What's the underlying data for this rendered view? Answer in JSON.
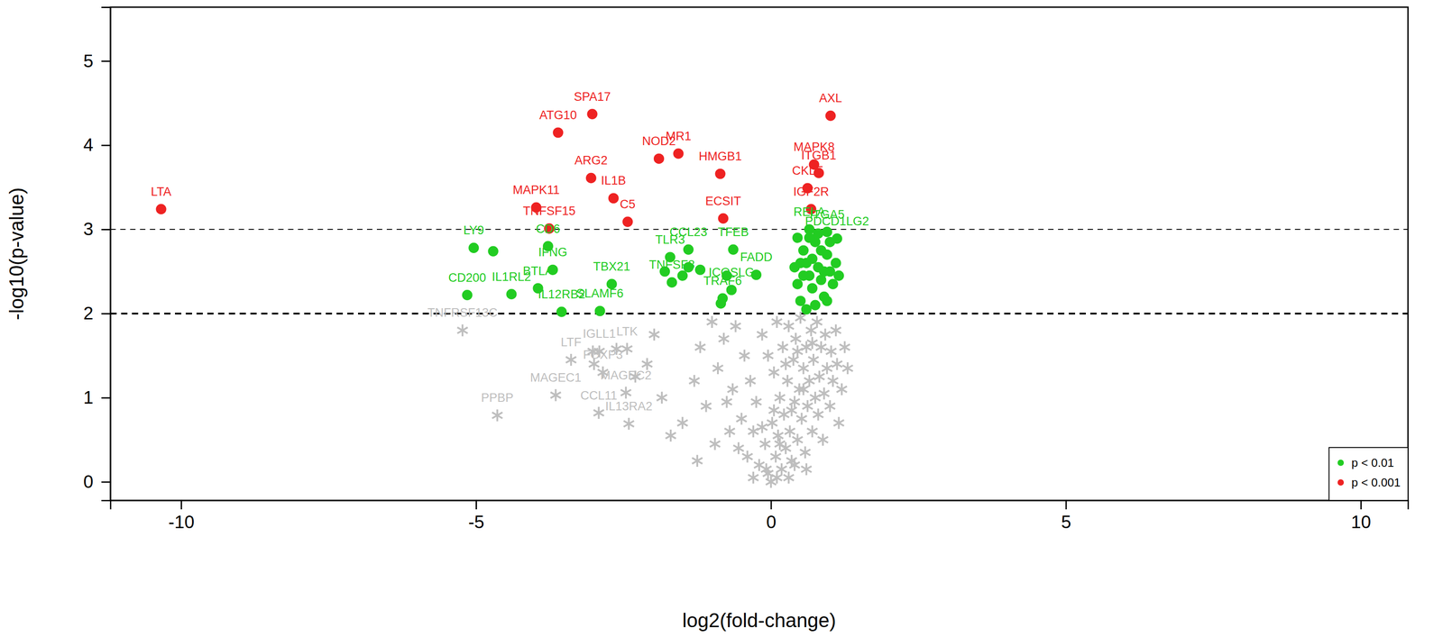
{
  "chart_data": {
    "type": "scatter",
    "x_label": "log2(fold-change)",
    "y_label": "-log10(p-value)",
    "xlim": [
      -11.2,
      10.8
    ],
    "ylim": [
      -0.22,
      5.64
    ],
    "xticks": [
      -10,
      -5,
      0,
      5,
      10
    ],
    "yticks": [
      0,
      1,
      2,
      3,
      4,
      5
    ],
    "reference_lines": [
      3,
      2
    ],
    "legend": "bottom-right",
    "series": [
      {
        "name": "p < 0.001",
        "color": "#ee2222",
        "marker": "circle",
        "x": [
          -10.34,
          -3.61,
          -3.03,
          -3.05,
          -2.67,
          -2.43,
          -3.98,
          -3.76,
          -1.9,
          -1.57,
          -0.86,
          -0.81,
          1.01,
          0.73,
          0.81,
          0.62,
          0.68
        ],
        "y": [
          3.24,
          4.15,
          4.37,
          3.61,
          3.37,
          3.09,
          3.26,
          3.01,
          3.84,
          3.9,
          3.66,
          3.13,
          4.35,
          3.77,
          3.67,
          3.49,
          3.24
        ],
        "labels": [
          "LTA",
          "ATG10",
          "SPA17",
          "ARG2",
          "IL1B",
          "C5",
          "MAPK11",
          "TNFSF15",
          "NOD2",
          "MR1",
          "HMGB1",
          "ECSIT",
          "AXL",
          "MAPK8",
          "ITGB1",
          "CKLF",
          "IGF2R"
        ]
      },
      {
        "name": "p < 0.01",
        "color": "#22cc22",
        "marker": "circle",
        "x": [
          -5.04,
          -3.78,
          -3.7,
          -3.95,
          -5.15,
          -4.4,
          -3.55,
          -2.7,
          -2.9,
          -1.71,
          -1.4,
          -0.64,
          -0.25,
          -1.68,
          -0.67,
          -0.82,
          0.65,
          1.12,
          0.95,
          0.45,
          0.55,
          0.6,
          0.65,
          0.7,
          0.75,
          0.8,
          0.85,
          0.9,
          0.95,
          1.0,
          1.05,
          0.5,
          0.55,
          0.6,
          0.7,
          0.75,
          0.8,
          0.85,
          0.9,
          1.0,
          1.1,
          0.45,
          0.65,
          1.15,
          0.95,
          0.4,
          0.5,
          -1.5,
          -1.8,
          -0.75,
          -0.85,
          -1.4,
          -1.2,
          -4.71
        ],
        "y": [
          2.78,
          2.8,
          2.52,
          2.3,
          2.22,
          2.23,
          2.02,
          2.35,
          2.03,
          2.67,
          2.76,
          2.76,
          2.46,
          2.37,
          2.28,
          2.18,
          3.0,
          2.89,
          2.97,
          2.9,
          2.75,
          2.6,
          2.45,
          2.3,
          2.85,
          2.55,
          2.4,
          2.2,
          2.7,
          2.5,
          2.35,
          2.15,
          2.45,
          2.05,
          2.65,
          2.1,
          2.95,
          2.75,
          2.5,
          2.85,
          2.6,
          2.35,
          2.9,
          2.45,
          2.15,
          2.55,
          2.6,
          2.45,
          2.5,
          2.45,
          2.12,
          2.55,
          2.52,
          2.74
        ],
        "labels": [
          "LY9",
          "CD6",
          "IFNG",
          "BTLA",
          "CD200",
          "IL1RL2",
          "IL12RB2",
          "TBX21",
          "SLAMF6",
          "TLR3",
          "CCL23",
          "TFEB",
          "FADD",
          "TNFSF8",
          "ICOSLG",
          "TRAF6",
          "RELA",
          "PDCD1LG2",
          "ITGA5",
          null,
          null,
          null,
          null,
          null,
          null,
          null,
          null,
          null,
          null,
          null,
          null,
          null,
          null,
          null,
          null,
          null,
          null,
          null,
          null,
          null,
          null,
          null,
          null,
          null,
          null,
          null,
          null,
          null,
          null,
          null,
          null,
          null,
          null,
          null
        ]
      },
      {
        "color": "#bebebe",
        "marker": "asterisk",
        "x": [
          -5.23,
          -4.64,
          -3.65,
          -3.39,
          -2.85,
          -2.91,
          -2.44,
          -2.46,
          -2.92,
          -2.41,
          -3.02,
          -3.0,
          -2.62,
          -2.3,
          -2.1,
          -1.98,
          -1.85,
          -1.7,
          -1.5,
          -1.3,
          -1.25,
          -1.2,
          -1.1,
          -1.0,
          -0.95,
          -0.9,
          -0.8,
          -0.75,
          -0.7,
          -0.65,
          -0.6,
          -0.55,
          -0.5,
          -0.45,
          -0.4,
          -0.35,
          -0.3,
          -0.25,
          -0.2,
          -0.15,
          -0.1,
          -0.05,
          0.0,
          0.02,
          0.05,
          0.08,
          0.1,
          0.12,
          0.15,
          0.18,
          0.2,
          0.22,
          0.25,
          0.28,
          0.3,
          0.32,
          0.35,
          0.38,
          0.4,
          0.42,
          0.45,
          0.48,
          0.5,
          0.52,
          0.55,
          0.58,
          0.6,
          0.62,
          0.65,
          0.68,
          0.7,
          0.72,
          0.75,
          0.78,
          0.8,
          0.82,
          0.85,
          0.88,
          0.9,
          0.92,
          0.95,
          1.0,
          1.02,
          1.05,
          1.1,
          1.12,
          1.15,
          1.2,
          1.25,
          1.3,
          0.1,
          -0.08,
          0.15,
          0.3,
          -0.3,
          0.4,
          0.6,
          0.05,
          -0.15,
          0.45,
          0.25,
          0.7,
          -0.05,
          0.55,
          0.35
        ],
        "y": [
          1.8,
          0.79,
          1.03,
          1.45,
          1.3,
          1.55,
          1.58,
          1.06,
          0.82,
          0.69,
          1.55,
          1.4,
          1.58,
          1.25,
          1.4,
          1.75,
          1.0,
          0.55,
          0.7,
          1.2,
          0.25,
          1.6,
          0.9,
          1.9,
          0.45,
          1.35,
          1.7,
          0.95,
          0.6,
          1.1,
          1.85,
          0.4,
          0.75,
          1.5,
          0.3,
          1.2,
          0.6,
          0.95,
          0.2,
          1.75,
          0.45,
          0.1,
          0.0,
          0.7,
          1.3,
          0.3,
          1.9,
          0.55,
          1.0,
          0.15,
          1.6,
          0.8,
          0.4,
          1.2,
          1.85,
          0.6,
          0.25,
          1.45,
          0.95,
          1.7,
          0.5,
          1.1,
          1.95,
          0.75,
          1.35,
          0.35,
          1.6,
          0.9,
          1.2,
          1.8,
          0.6,
          1.45,
          1.0,
          1.9,
          0.8,
          1.25,
          1.6,
          0.5,
          1.05,
          1.75,
          1.35,
          0.9,
          1.55,
          1.2,
          1.8,
          1.4,
          0.7,
          1.1,
          1.6,
          1.35,
          0.05,
          0.15,
          0.45,
          0.05,
          0.05,
          0.2,
          0.15,
          0.85,
          0.65,
          1.55,
          1.4,
          1.65,
          1.5,
          1.1,
          0.85
        ],
        "labels": [
          "TNFRSF13C",
          "PPBP",
          "MAGEC1",
          "LTF",
          "FOXP3",
          "IGLL1",
          "LTK",
          "MAGEC2",
          "CCL11",
          "IL13RA2",
          null,
          null,
          null,
          null,
          null,
          null,
          null,
          null,
          null,
          null,
          null,
          null,
          null,
          null,
          null,
          null,
          null,
          null,
          null,
          null,
          null,
          null,
          null,
          null,
          null,
          null,
          null,
          null,
          null,
          null,
          null,
          null,
          null,
          null,
          null,
          null,
          null,
          null,
          null,
          null,
          null,
          null,
          null,
          null,
          null,
          null,
          null,
          null,
          null,
          null,
          null,
          null,
          null,
          null,
          null,
          null,
          null,
          null,
          null,
          null,
          null,
          null,
          null,
          null,
          null,
          null,
          null,
          null,
          null,
          null,
          null,
          null,
          null,
          null,
          null,
          null,
          null,
          null,
          null,
          null,
          null,
          null,
          null,
          null,
          null,
          null,
          null,
          null,
          null,
          null,
          null,
          null,
          null,
          null,
          null
        ]
      }
    ]
  }
}
